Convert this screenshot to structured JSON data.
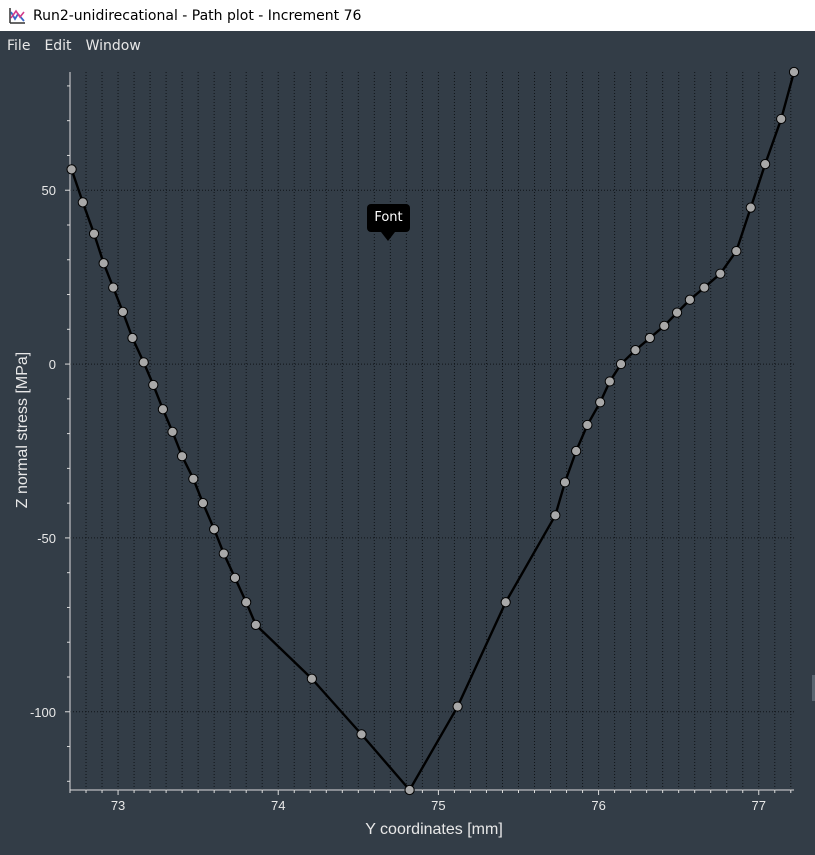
{
  "window": {
    "title": "Run2-unidirecational - Path plot - Increment 76"
  },
  "menu": {
    "items": [
      "File",
      "Edit",
      "Window"
    ]
  },
  "tooltip": {
    "text": "Font"
  },
  "colors": {
    "background": "#333d47",
    "line": "#000000",
    "marker_fill": "#a8a8a8",
    "text": "#e8e8e8"
  },
  "chart_data": {
    "type": "line",
    "xlabel": "Y coordinates [mm]",
    "ylabel": "Z normal stress [MPa]",
    "xlim": [
      72.7,
      77.22
    ],
    "ylim": [
      -122.5,
      84
    ],
    "xticks": [
      73,
      74,
      75,
      76,
      77
    ],
    "xtick_labels": [
      "73",
      "74",
      "75",
      "76",
      "77"
    ],
    "yticks": [
      50,
      0,
      -50,
      -100
    ],
    "ytick_labels": [
      "50",
      "0",
      "-50",
      "-100"
    ],
    "x_minor_step": 0.1,
    "y_minor_step": 10,
    "grid": true,
    "markers": true,
    "series": [
      {
        "x": [
          72.71,
          72.78,
          72.85,
          72.91,
          72.97,
          73.03,
          73.09,
          73.16,
          73.22,
          73.28,
          73.34,
          73.4,
          73.47,
          73.53,
          73.6,
          73.66,
          73.73,
          73.8,
          73.86,
          74.21,
          74.52,
          74.82,
          75.12,
          75.42,
          75.73,
          75.79,
          75.86,
          75.93,
          76.01,
          76.07,
          76.14,
          76.23,
          76.32,
          76.41,
          76.49,
          76.57,
          76.66,
          76.76,
          76.86,
          76.95,
          77.04,
          77.14,
          77.22
        ],
        "y": [
          56.0,
          46.5,
          37.5,
          29.0,
          22.0,
          15.0,
          7.5,
          0.5,
          -6.0,
          -13.0,
          -19.5,
          -26.5,
          -33.0,
          -40.0,
          -47.5,
          -54.5,
          -61.5,
          -68.5,
          -75.0,
          -90.5,
          -106.5,
          -122.5,
          -98.5,
          -68.5,
          -43.5,
          -34.0,
          -25.0,
          -17.5,
          -11.0,
          -5.0,
          0.0,
          4.0,
          7.5,
          11.0,
          14.8,
          18.5,
          22.0,
          26.0,
          32.5,
          45.0,
          57.5,
          70.5,
          84.0
        ]
      }
    ]
  }
}
